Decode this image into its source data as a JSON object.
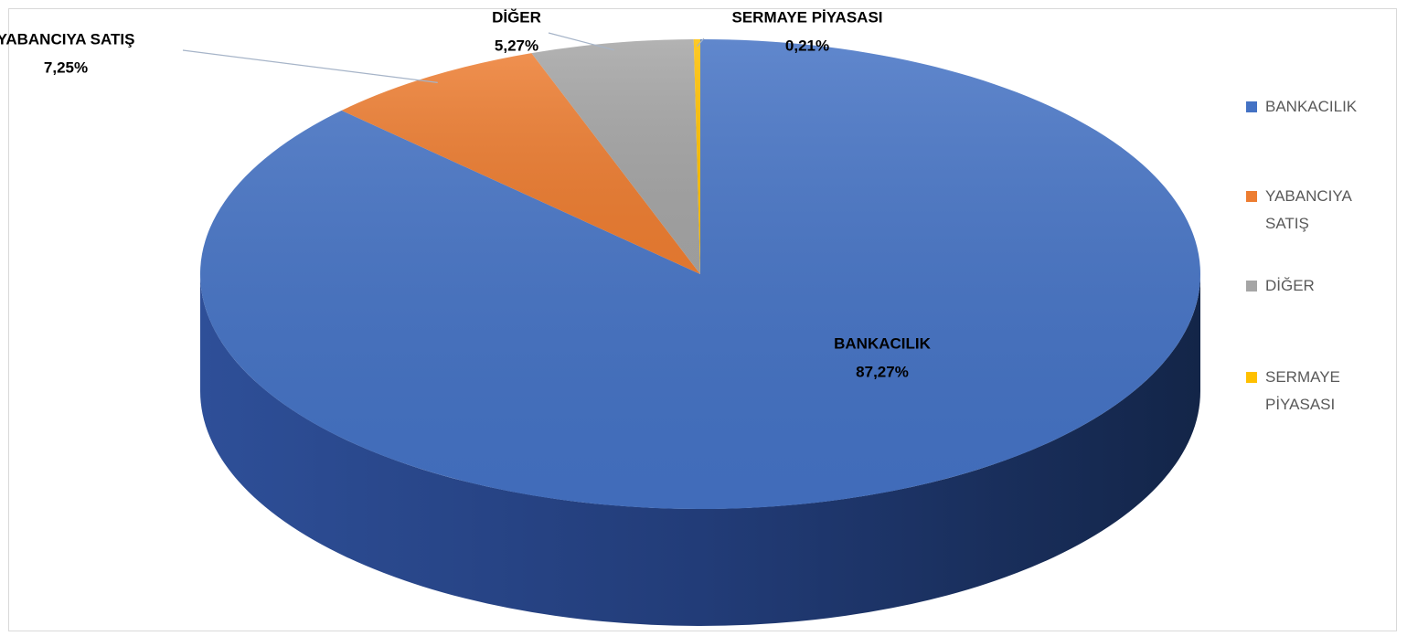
{
  "chart_data": {
    "type": "pie3d",
    "categories": [
      "BANKACILIK",
      "YABANCIYA SATIŞ",
      "DİĞER",
      "SERMAYE PİYASASI"
    ],
    "values": [
      87.27,
      7.25,
      5.27,
      0.21
    ],
    "value_labels": [
      "87,27%",
      "7,25%",
      "5,27%",
      "0,21%"
    ],
    "colors": [
      "#4472c4",
      "#ed7d31",
      "#a5a5a5",
      "#ffc000"
    ],
    "legend": "right"
  }
}
